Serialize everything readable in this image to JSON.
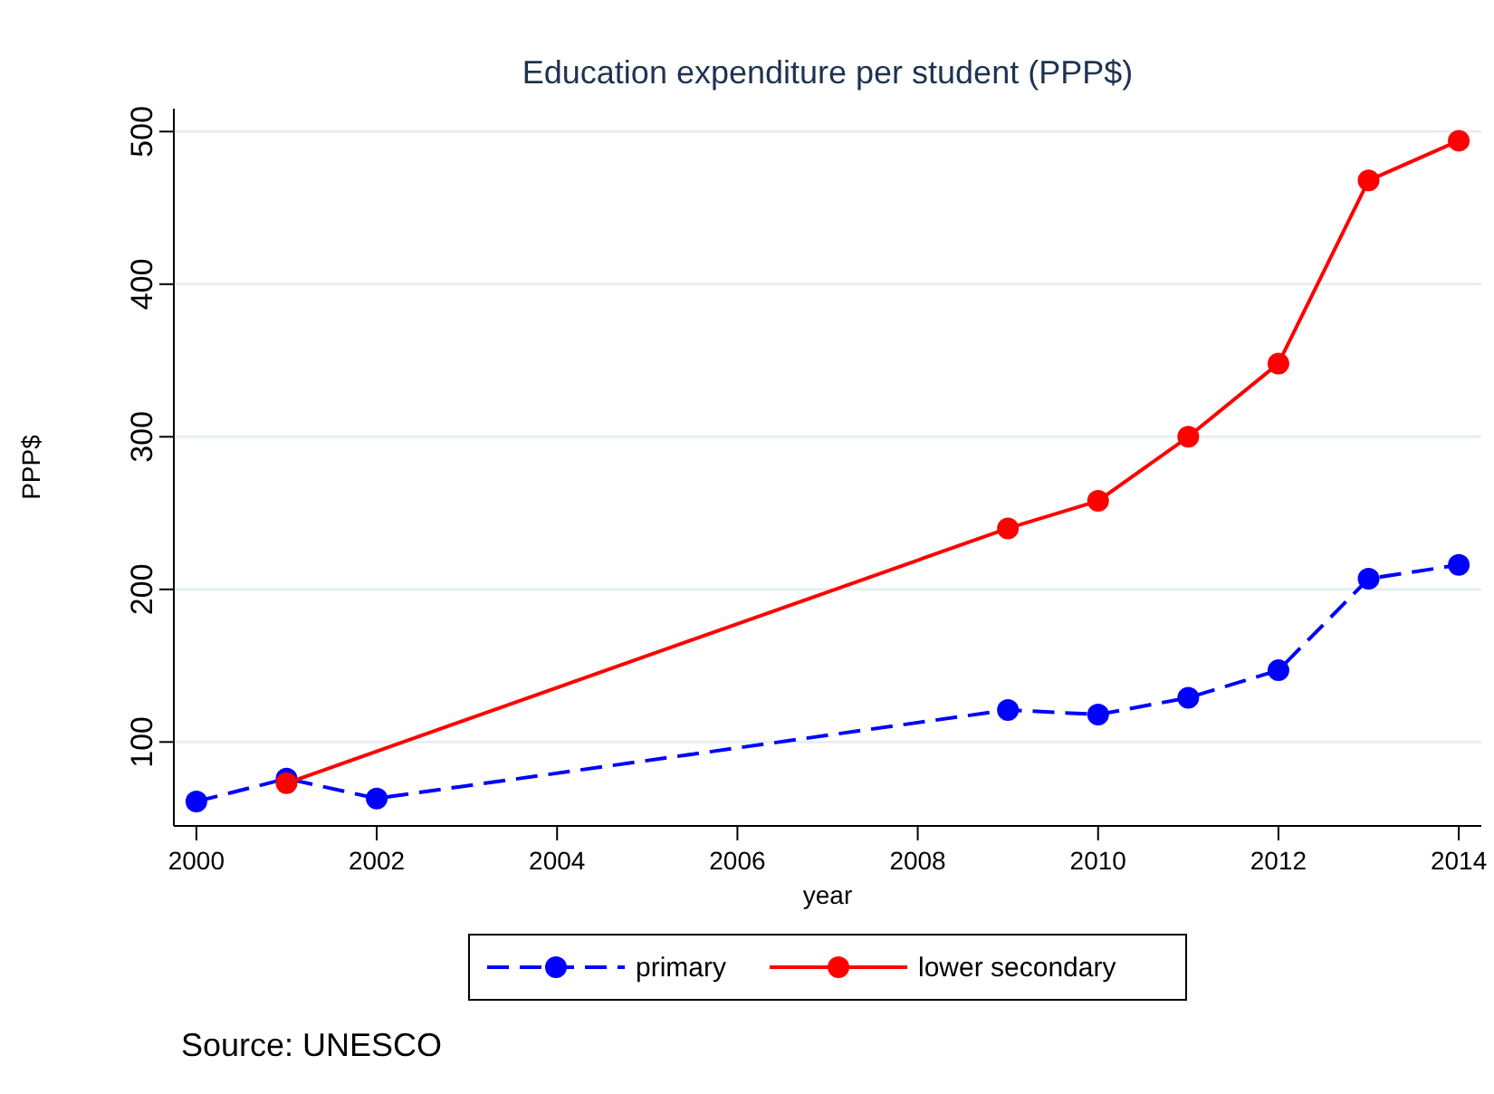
{
  "chart_data": {
    "type": "line",
    "title": "Education expenditure per student (PPP$)",
    "xlabel": "year",
    "ylabel": "PPP$",
    "xlim": [
      1999.75,
      2014.25
    ],
    "xticks": [
      2000,
      2002,
      2004,
      2006,
      2008,
      2010,
      2012,
      2014
    ],
    "ylim": [
      45,
      515
    ],
    "yticks": [
      100,
      200,
      300,
      400,
      500
    ],
    "grid": "y",
    "legend": "bottom",
    "marker": "circle",
    "series": [
      {
        "name": "primary",
        "color": "#0000ff",
        "line_style": "dashed",
        "x": [
          2000,
          2001,
          2002,
          2009,
          2010,
          2011,
          2012,
          2013,
          2014
        ],
        "values": [
          61,
          76,
          63,
          121,
          118,
          129,
          147,
          207,
          216
        ]
      },
      {
        "name": "lower secondary",
        "color": "#ff0000",
        "line_style": "solid",
        "x": [
          2001,
          2009,
          2010,
          2011,
          2012,
          2013,
          2014
        ],
        "values": [
          73,
          240,
          258,
          300,
          348,
          468,
          494
        ]
      }
    ],
    "annotations": [
      "Source: UNESCO"
    ]
  }
}
